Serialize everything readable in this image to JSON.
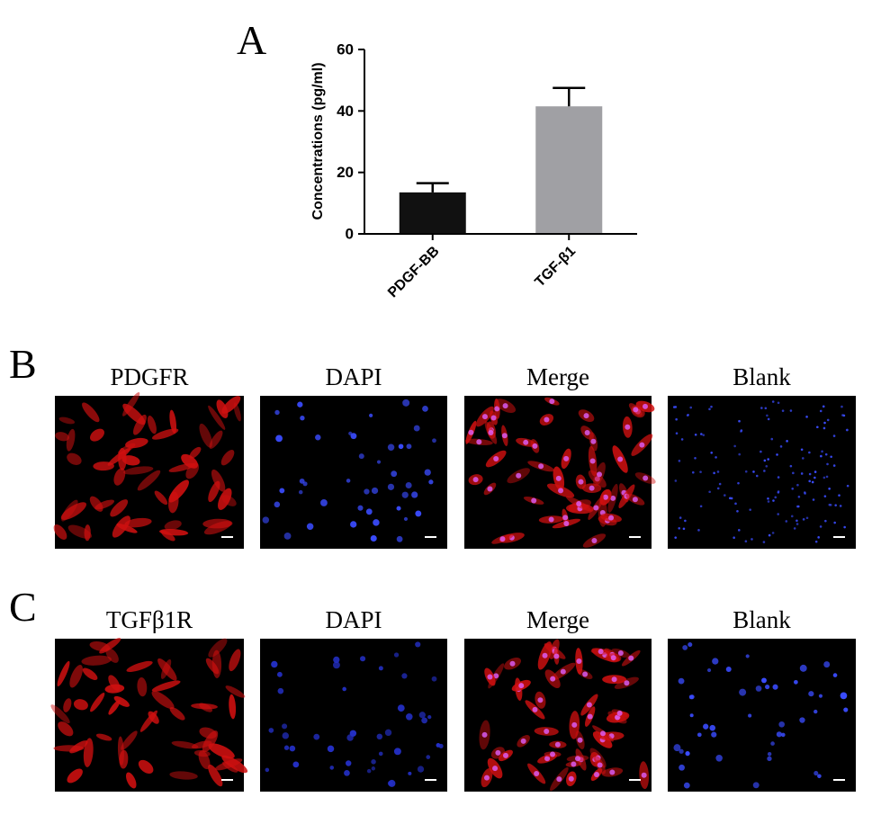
{
  "chart_data": {
    "type": "bar",
    "panel_label": "A",
    "ylabel": "Concentrations (pg/ml)",
    "categories": [
      "PDGF-BB",
      "TGF-β1"
    ],
    "values": [
      13.5,
      41.5
    ],
    "errors": [
      3,
      6
    ],
    "colors": [
      "#111111",
      "#a0a0a4"
    ],
    "ylim": [
      0,
      60
    ],
    "yticks": [
      0,
      20,
      40,
      60
    ]
  },
  "panels": [
    {
      "label": "B",
      "images": [
        "PDGFR",
        "DAPI",
        "Merge",
        "Blank"
      ]
    },
    {
      "label": "C",
      "images": [
        "TGFβ1R",
        "DAPI",
        "Merge",
        "Blank"
      ]
    }
  ]
}
